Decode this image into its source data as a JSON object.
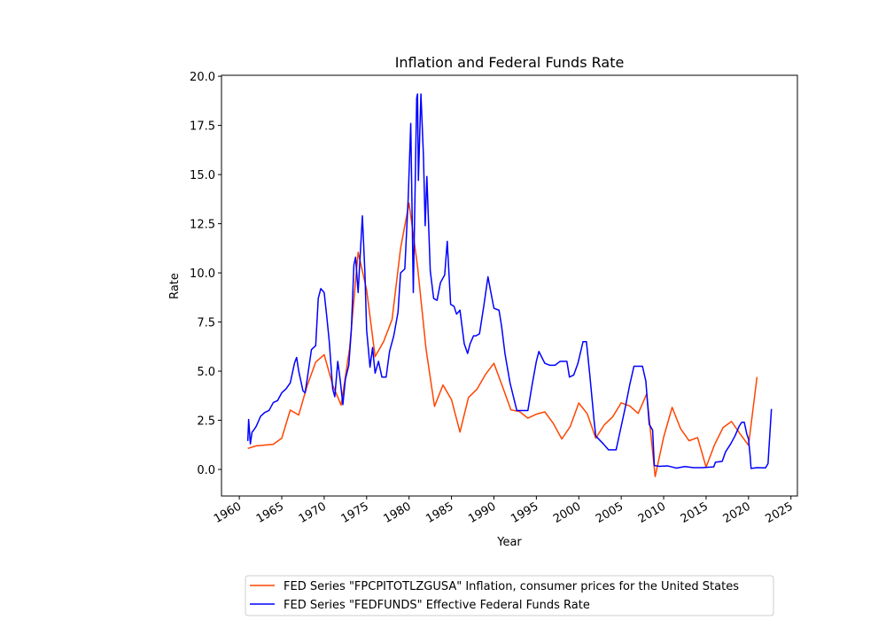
{
  "chart_data": {
    "type": "line",
    "title": "Inflation and Federal Funds Rate",
    "xlabel": "Year",
    "ylabel": "Rate",
    "xlim": [
      1957.9,
      2025.76
    ],
    "ylim": [
      -1.35,
      20.05
    ],
    "xticks": [
      1960,
      1965,
      1970,
      1975,
      1980,
      1985,
      1990,
      1995,
      2000,
      2005,
      2010,
      2015,
      2020,
      2025
    ],
    "yticks": [
      {
        "value": 0,
        "label": "0.0"
      },
      2.5,
      {
        "value": 5,
        "label": "5.0"
      },
      7.5,
      {
        "value": 10,
        "label": "10.0"
      },
      12.5,
      {
        "value": 15,
        "label": "15.0"
      },
      17.5,
      {
        "value": 20,
        "label": "20.0"
      }
    ],
    "legend": "below",
    "series": [
      {
        "name": "FED Series \"FPCPITOTLZGUSA\" Inflation, consumer prices for the United States",
        "color": "#ff4500",
        "x": [
          1961,
          1962,
          1963,
          1964,
          1965,
          1966,
          1967,
          1968,
          1969,
          1970,
          1971,
          1972,
          1973,
          1974,
          1975,
          1976,
          1977,
          1978,
          1979,
          1980,
          1981,
          1982,
          1983,
          1984,
          1985,
          1986,
          1987,
          1988,
          1989,
          1990,
          1991,
          1992,
          1993,
          1994,
          1995,
          1996,
          1997,
          1998,
          1999,
          2000,
          2001,
          2002,
          2003,
          2004,
          2005,
          2006,
          2007,
          2008,
          2009,
          2010,
          2011,
          2012,
          2013,
          2014,
          2015,
          2016,
          2017,
          2018,
          2019,
          2020,
          2021
        ],
        "values": [
          1.07,
          1.2,
          1.24,
          1.28,
          1.59,
          3.02,
          2.77,
          4.27,
          5.46,
          5.84,
          4.29,
          3.27,
          6.18,
          11.05,
          9.14,
          5.74,
          6.5,
          7.63,
          11.25,
          13.55,
          10.33,
          6.13,
          3.21,
          4.3,
          3.55,
          1.9,
          3.66,
          4.08,
          4.83,
          5.4,
          4.23,
          3.03,
          2.95,
          2.61,
          2.81,
          2.93,
          2.34,
          1.55,
          2.19,
          3.38,
          2.83,
          1.59,
          2.27,
          2.68,
          3.39,
          3.23,
          2.85,
          3.84,
          -0.36,
          1.64,
          3.16,
          2.07,
          1.46,
          1.62,
          0.12,
          1.26,
          2.13,
          2.44,
          1.81,
          1.23,
          4.7
        ]
      },
      {
        "name": "FED Series \"FEDFUNDS\" Effective Federal Funds Rate",
        "color": "#0000ff",
        "x": [
          1961,
          1961.1,
          1961.3,
          1961.5,
          1961.7,
          1962,
          1962.5,
          1963,
          1963.5,
          1964,
          1964.5,
          1965,
          1965.5,
          1966,
          1966.5,
          1966.75,
          1967,
          1967.5,
          1967.75,
          1968,
          1968.5,
          1969,
          1969.3,
          1969.6,
          1970,
          1970.3,
          1970.6,
          1971,
          1971.25,
          1971.6,
          1971.9,
          1972.2,
          1972.5,
          1972.9,
          1973.2,
          1973.5,
          1973.7,
          1974,
          1974.5,
          1974.8,
          1975,
          1975.4,
          1975.7,
          1976,
          1976.4,
          1976.8,
          1977.3,
          1977.7,
          1978.2,
          1978.7,
          1979,
          1979.5,
          1979.9,
          1980.2,
          1980.5,
          1980.9,
          1981,
          1981.1,
          1981.4,
          1981.7,
          1981.9,
          1982.1,
          1982.5,
          1982.9,
          1983.3,
          1983.7,
          1984.2,
          1984.5,
          1984.9,
          1985.3,
          1985.6,
          1986,
          1986.5,
          1986.9,
          1987.2,
          1987.6,
          1987.9,
          1988.3,
          1988.8,
          1989.3,
          1989.6,
          1990,
          1990.6,
          1990.9,
          1991.3,
          1991.9,
          1992.3,
          1992.7,
          1993.5,
          1994,
          1994.5,
          1995,
          1995.3,
          1996,
          1996.6,
          1997.2,
          1997.8,
          1998.6,
          1998.9,
          1999.4,
          1999.9,
          2000.5,
          2000.9,
          2001.3,
          2001.8,
          2002,
          2002.9,
          2003.5,
          2004.4,
          2004.9,
          2005.5,
          2006,
          2006.5,
          2007.5,
          2007.9,
          2008.3,
          2008.7,
          2008.9,
          2009.5,
          2010.5,
          2011.5,
          2012.5,
          2013.5,
          2014.5,
          2015.9,
          2016.1,
          2016.9,
          2017.3,
          2017.9,
          2018.4,
          2018.9,
          2019.2,
          2019.5,
          2019.8,
          2020,
          2020.2,
          2020.3,
          2021,
          2022,
          2022.3,
          2022.5,
          2022.7
        ],
        "values": [
          1.45,
          2.54,
          1.3,
          1.9,
          2.0,
          2.2,
          2.7,
          2.9,
          3.0,
          3.4,
          3.5,
          3.9,
          4.1,
          4.4,
          5.4,
          5.7,
          5.0,
          4.0,
          3.9,
          4.6,
          6.1,
          6.3,
          8.7,
          9.2,
          9.0,
          7.8,
          6.5,
          4.1,
          3.7,
          5.5,
          4.5,
          3.3,
          4.6,
          5.3,
          7.1,
          10.4,
          10.8,
          9.0,
          12.9,
          10.0,
          7.1,
          5.2,
          6.2,
          4.9,
          5.5,
          4.7,
          4.7,
          6.0,
          6.8,
          8.0,
          10.0,
          10.2,
          13.8,
          17.6,
          9.0,
          18.9,
          19.1,
          14.7,
          19.1,
          15.9,
          12.4,
          14.9,
          10.1,
          8.7,
          8.6,
          9.5,
          9.9,
          11.6,
          8.4,
          8.3,
          7.9,
          8.1,
          6.4,
          5.9,
          6.4,
          6.8,
          6.8,
          6.9,
          8.3,
          9.8,
          9.1,
          8.2,
          8.1,
          7.3,
          5.9,
          4.4,
          3.7,
          3.0,
          3.0,
          3.0,
          4.3,
          5.5,
          6.0,
          5.4,
          5.3,
          5.3,
          5.5,
          5.5,
          4.7,
          4.8,
          5.4,
          6.5,
          6.5,
          4.8,
          2.5,
          1.7,
          1.3,
          1.0,
          1.0,
          2.0,
          3.2,
          4.3,
          5.25,
          5.25,
          4.5,
          2.3,
          2.0,
          0.2,
          0.16,
          0.18,
          0.07,
          0.15,
          0.09,
          0.09,
          0.13,
          0.37,
          0.41,
          0.9,
          1.3,
          1.7,
          2.2,
          2.4,
          2.4,
          1.8,
          1.55,
          0.65,
          0.05,
          0.09,
          0.08,
          0.3,
          1.7,
          3.08
        ]
      }
    ]
  }
}
